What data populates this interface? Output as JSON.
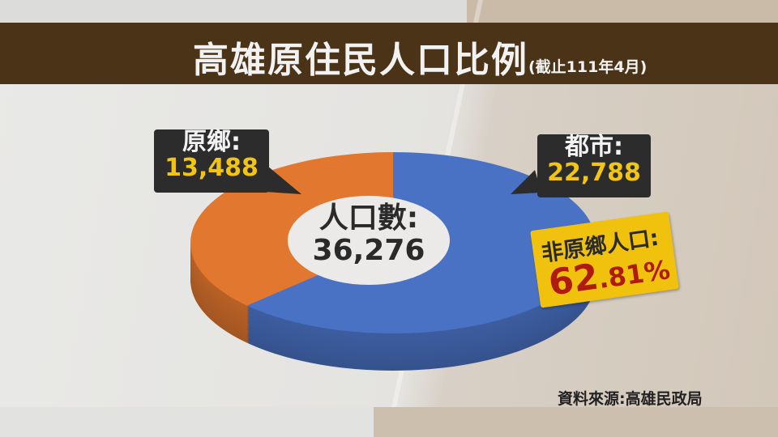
{
  "header": {
    "title": "高雄原住民人口比例",
    "subtitle": "(截止111年4月)"
  },
  "chart_data": {
    "type": "pie",
    "style": "3d-donut",
    "categories": [
      "都市",
      "原鄉"
    ],
    "values": [
      22788,
      13488
    ],
    "colors": [
      "#4a72c4",
      "#e2772f"
    ],
    "total_label": "人口數:",
    "total": "36,276",
    "labels": [
      {
        "name": "都市:",
        "value": "22,788"
      },
      {
        "name": "原鄉:",
        "value": "13,488"
      }
    ],
    "annotation": {
      "label": "非原鄉人口:",
      "value": "62.81%",
      "value_major": "62",
      "value_minor": ".81%"
    }
  },
  "source": "資料來源:高雄民政局"
}
